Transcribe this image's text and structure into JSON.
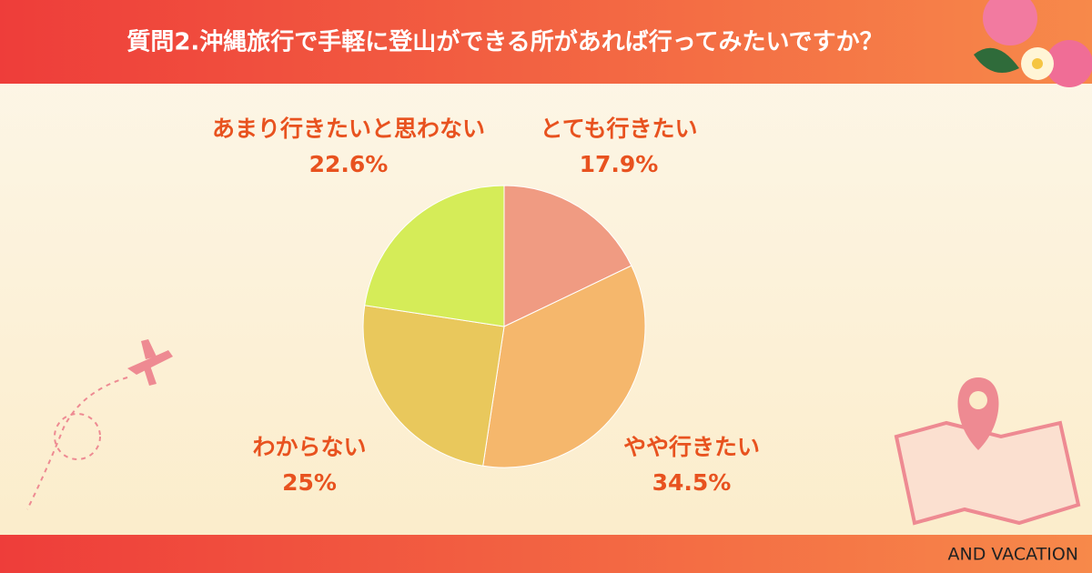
{
  "chart_data": {
    "type": "pie",
    "title": "質問2.沖縄旅行で手軽に登山ができる所があれば行ってみたいですか？",
    "categories": [
      "とても行きたい",
      "やや行きたい",
      "わからない",
      "あまり行きたいと思わない"
    ],
    "values": [
      17.9,
      34.5,
      25,
      22.6
    ],
    "value_labels": [
      "17.9%",
      "34.5%",
      "25%",
      "22.6%"
    ],
    "colors": [
      "#f09b82",
      "#f5b76c",
      "#e9c85c",
      "#d5ec58"
    ],
    "credit": "AND VACATION"
  }
}
